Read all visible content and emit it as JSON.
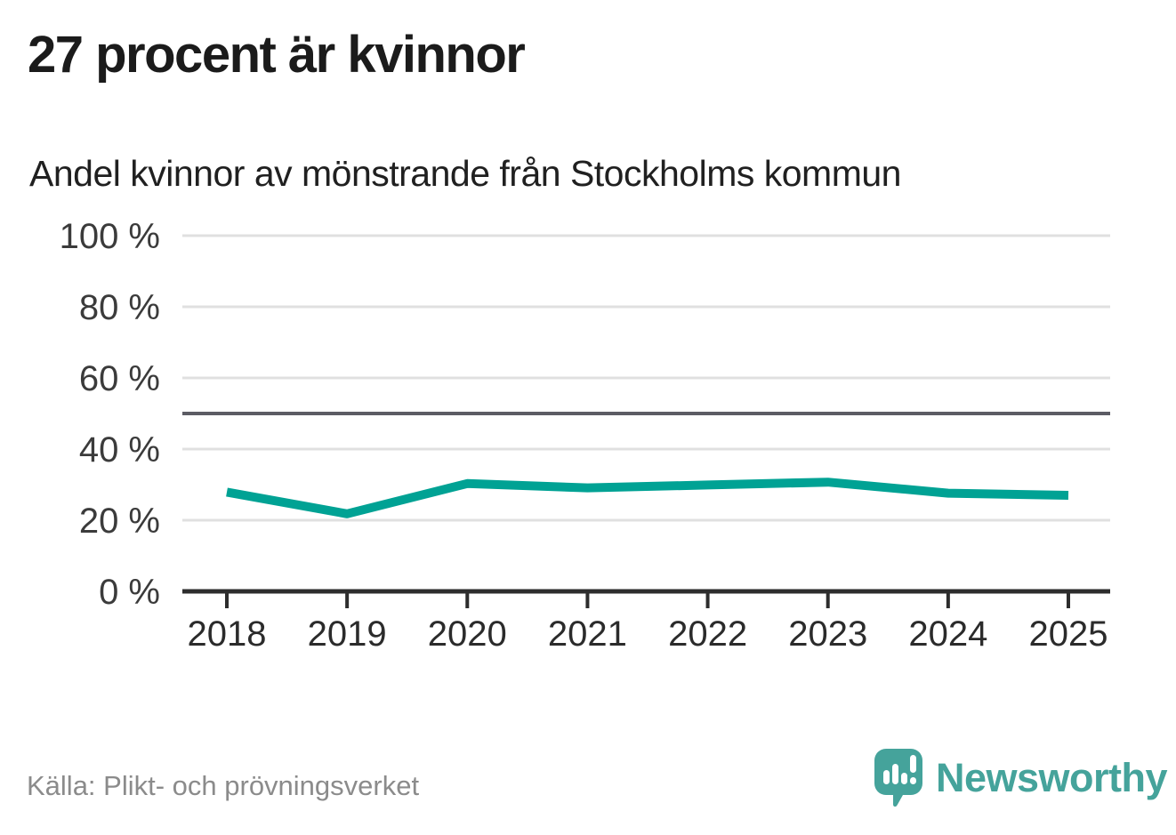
{
  "header": {
    "title": "27 procent är kvinnor",
    "subtitle": "Andel kvinnor av mönstrande från Stockholms kommun"
  },
  "chart_data": {
    "type": "line",
    "title": "27 procent är kvinnor",
    "subtitle": "Andel kvinnor av mönstrande från Stockholms kommun",
    "x": [
      2018,
      2019,
      2020,
      2021,
      2022,
      2023,
      2024,
      2025
    ],
    "x_tick_labels": [
      "2018",
      "2019",
      "2020",
      "2021",
      "2022",
      "2023",
      "2024",
      "2025"
    ],
    "series": [
      {
        "name": "Andel kvinnor",
        "values": [
          27.9,
          21.8,
          30.3,
          29.1,
          29.9,
          30.7,
          27.6,
          27.0
        ]
      }
    ],
    "ylim": [
      0,
      100
    ],
    "y_ticks": [
      0,
      20,
      40,
      60,
      80,
      100
    ],
    "y_tick_labels": [
      "0 %",
      "20 %",
      "40 %",
      "60 %",
      "80 %",
      "100 %"
    ],
    "reference_line": 50,
    "grid": true,
    "legend": "none"
  },
  "footer": {
    "source": "Källa: Plikt- och prövningsverket",
    "logo_text": "Newsworthy"
  },
  "colors": {
    "line": "#00a294",
    "grid": "#e0e0e0",
    "reference": "#5c5c64",
    "axis": "#2d2d2d",
    "ylabel": "#3b3b3b",
    "xlabel": "#2b2b2b",
    "title": "#1b1b1b",
    "subtitle": "#202020",
    "source": "#8b8b8b",
    "logo_teal": "#45a39b"
  }
}
